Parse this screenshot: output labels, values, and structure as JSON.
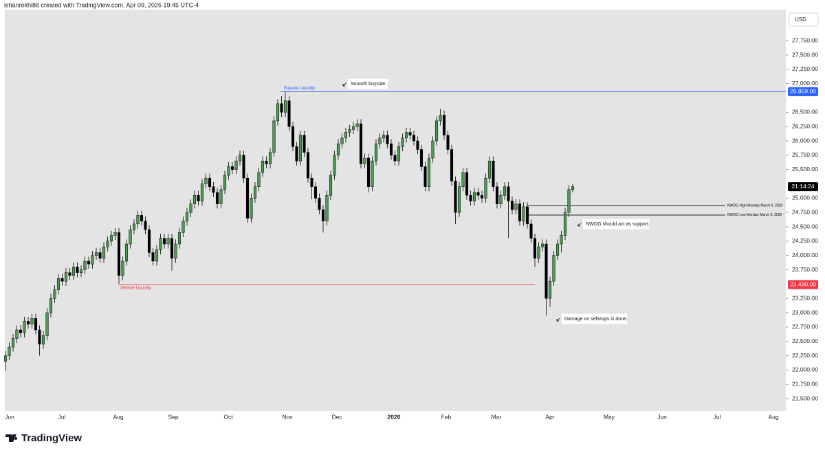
{
  "header": {
    "text": "ishanrekhi86 created with TradingView.com, Apr 09, 2026 19:45 UTC-4"
  },
  "chart_data": {
    "type": "candlestick",
    "currency": "USD",
    "x_labels": [
      "Jun",
      "Jul",
      "Aug",
      "Sep",
      "Oct",
      "Nov",
      "Dec",
      "2026",
      "Feb",
      "Mar",
      "Apr",
      "May",
      "Jun",
      "Jul",
      "Aug"
    ],
    "up_color": "#4c9a4f",
    "down_color": "#000000",
    "open": [
      22150,
      22250,
      22400,
      22550,
      22700,
      22650,
      22850,
      22800,
      22900,
      22700,
      22450,
      22600,
      23000,
      23250,
      23400,
      23600,
      23550,
      23700,
      23650,
      23800,
      23700,
      23750,
      23900,
      23850,
      24000,
      24050,
      23950,
      24150,
      24250,
      24350,
      24400,
      23650,
      23900,
      24200,
      24450,
      24550,
      24700,
      24600,
      24450,
      24050,
      23900,
      24100,
      24300,
      24200,
      24300,
      23950,
      24200,
      24400,
      24600,
      24750,
      24900,
      25050,
      24950,
      25250,
      25350,
      25200,
      25100,
      24900,
      25150,
      25400,
      25550,
      25500,
      25650,
      25750,
      25350,
      24650,
      25000,
      25200,
      25450,
      25650,
      25600,
      25800,
      26350,
      26650,
      26500,
      26700,
      26250,
      25900,
      25650,
      26100,
      25800,
      25350,
      25200,
      25000,
      24800,
      24600,
      25050,
      25400,
      25750,
      25950,
      26050,
      26150,
      26200,
      26250,
      26300,
      25600,
      25700,
      25200,
      25650,
      25950,
      26050,
      26100,
      25950,
      25750,
      25650,
      25900,
      26050,
      26150,
      26100,
      26000,
      25850,
      25550,
      25200,
      25700,
      26000,
      26350,
      26450,
      26100,
      25850,
      25300,
      24750,
      25200,
      25450,
      25050,
      24950,
      25100,
      25050,
      25000,
      25350,
      25650,
      25200,
      24900,
      25050,
      25200,
      24950,
      24800,
      24900,
      24600,
      24850,
      24550,
      24300,
      23950,
      24150,
      24200,
      23250,
      23550,
      24000,
      24200,
      24350,
      24750,
      25150
    ],
    "high": [
      22330,
      22480,
      22630,
      22780,
      22780,
      22930,
      22930,
      22980,
      22980,
      22780,
      22680,
      23080,
      23330,
      23480,
      23680,
      23680,
      23780,
      23780,
      23880,
      23880,
      23830,
      23980,
      23980,
      24080,
      24130,
      24130,
      24230,
      24330,
      24430,
      24480,
      24480,
      23980,
      24280,
      24530,
      24630,
      24780,
      24780,
      24680,
      24530,
      24130,
      24180,
      24380,
      24380,
      24380,
      24380,
      24280,
      24480,
      24680,
      24830,
      24980,
      25130,
      25130,
      25330,
      25430,
      25430,
      25280,
      25180,
      25230,
      25480,
      25630,
      25630,
      25730,
      25830,
      25830,
      25430,
      25080,
      25280,
      25530,
      25730,
      25730,
      25880,
      26430,
      26730,
      26780,
      26859,
      26780,
      26330,
      25980,
      26180,
      26180,
      25880,
      25430,
      25280,
      25080,
      24880,
      25130,
      25480,
      25830,
      26030,
      26130,
      26230,
      26280,
      26330,
      26380,
      26380,
      25780,
      25780,
      25730,
      26030,
      26130,
      26180,
      26180,
      26030,
      25830,
      25980,
      26130,
      26230,
      26230,
      26180,
      26080,
      25930,
      25630,
      25780,
      26080,
      26430,
      26560,
      26530,
      26180,
      25930,
      25380,
      25280,
      25530,
      25530,
      25130,
      25180,
      25180,
      25130,
      25430,
      25730,
      25730,
      25280,
      25130,
      25280,
      25280,
      25030,
      24980,
      24980,
      24930,
      24930,
      24630,
      24380,
      24230,
      24280,
      24280,
      23630,
      24080,
      24280,
      24430,
      24830,
      25230,
      25250
    ],
    "low": [
      21980,
      22170,
      22320,
      22470,
      22570,
      22570,
      22720,
      22720,
      22620,
      22250,
      22370,
      22520,
      22920,
      23170,
      23320,
      23470,
      23470,
      23570,
      23570,
      23620,
      23620,
      23670,
      23770,
      23770,
      23920,
      23870,
      23870,
      24070,
      24170,
      24270,
      23500,
      23570,
      23820,
      24120,
      24370,
      24470,
      24520,
      24370,
      23970,
      23820,
      23820,
      24020,
      24120,
      24120,
      23730,
      23870,
      24120,
      24320,
      24520,
      24670,
      24820,
      24870,
      24870,
      25170,
      25120,
      25020,
      24820,
      24820,
      25070,
      25320,
      25420,
      25420,
      25570,
      25270,
      24570,
      24570,
      24920,
      25120,
      25370,
      25520,
      25520,
      25720,
      26270,
      26420,
      26420,
      26170,
      25820,
      25570,
      25570,
      25720,
      25270,
      24980,
      24920,
      24720,
      24400,
      24520,
      24970,
      25320,
      25670,
      25870,
      25970,
      26070,
      26120,
      26170,
      25520,
      25520,
      25100,
      25120,
      25570,
      25870,
      25970,
      25870,
      25670,
      25570,
      25570,
      25820,
      25970,
      26020,
      25920,
      25770,
      25470,
      25120,
      25120,
      25620,
      25920,
      26270,
      26020,
      25770,
      25220,
      24550,
      24670,
      25120,
      24970,
      24870,
      24870,
      24970,
      24920,
      24920,
      25270,
      25120,
      24820,
      24820,
      24970,
      24300,
      24720,
      24720,
      24520,
      24520,
      24470,
      24220,
      23800,
      23870,
      24070,
      22950,
      23100,
      23470,
      23920,
      24050,
      24270,
      24670,
      25100
    ],
    "close": [
      22250,
      22400,
      22550,
      22700,
      22650,
      22850,
      22800,
      22900,
      22700,
      22450,
      22600,
      23000,
      23250,
      23400,
      23600,
      23550,
      23700,
      23650,
      23800,
      23700,
      23750,
      23900,
      23850,
      24000,
      24050,
      23950,
      24150,
      24250,
      24350,
      24400,
      23650,
      23900,
      24200,
      24450,
      24550,
      24700,
      24600,
      24450,
      24050,
      23900,
      24100,
      24300,
      24200,
      24300,
      23950,
      24200,
      24400,
      24600,
      24750,
      24900,
      25050,
      24950,
      25250,
      25350,
      25200,
      25100,
      24900,
      25150,
      25400,
      25550,
      25500,
      25650,
      25750,
      25350,
      24650,
      25000,
      25200,
      25450,
      25650,
      25600,
      25800,
      26350,
      26650,
      26500,
      26700,
      26250,
      25900,
      25650,
      26100,
      25800,
      25350,
      25200,
      25000,
      24800,
      24600,
      25050,
      25400,
      25750,
      25950,
      26050,
      26150,
      26200,
      26250,
      26300,
      25600,
      25700,
      25200,
      25650,
      25950,
      26050,
      26100,
      25950,
      25750,
      25650,
      25900,
      26050,
      26150,
      26100,
      26000,
      25850,
      25550,
      25200,
      25700,
      26000,
      26350,
      26450,
      26100,
      25850,
      25300,
      24750,
      25200,
      25450,
      25050,
      24950,
      25100,
      25050,
      25000,
      25350,
      25650,
      25200,
      24900,
      25050,
      25200,
      24950,
      24800,
      24900,
      24600,
      24850,
      24550,
      24300,
      23950,
      24150,
      24200,
      23250,
      23550,
      24000,
      24200,
      24350,
      24750,
      25150,
      25200
    ],
    "ylim": [
      21284,
      28292
    ],
    "yticks": [
      {
        "value": 21500,
        "label": "21,500.00"
      },
      {
        "value": 21750,
        "label": "21,750.00"
      },
      {
        "value": 22000,
        "label": "22,000.00"
      },
      {
        "value": 22250,
        "label": "22,250.00"
      },
      {
        "value": 22500,
        "label": "22,500.00"
      },
      {
        "value": 22750,
        "label": "22,750.00"
      },
      {
        "value": 23000,
        "label": "23,000.00"
      },
      {
        "value": 23250,
        "label": "23,250.00"
      },
      {
        "value": 23750,
        "label": "23,750.00"
      },
      {
        "value": 24000,
        "label": "24,000.00"
      },
      {
        "value": 24250,
        "label": "24,250.00"
      },
      {
        "value": 24500,
        "label": "24,500.00"
      },
      {
        "value": 24750,
        "label": "24,750.00"
      },
      {
        "value": 25000,
        "label": "25,000.00"
      },
      {
        "value": 25500,
        "label": "25,500.00"
      },
      {
        "value": 25750,
        "label": "25,750.00"
      },
      {
        "value": 26000,
        "label": "26,000.00"
      },
      {
        "value": 26250,
        "label": "26,250.00"
      },
      {
        "value": 26500,
        "label": "26,500.00"
      },
      {
        "value": 27000,
        "label": "27,000.00"
      },
      {
        "value": 27250,
        "label": "27,250.00"
      },
      {
        "value": 27500,
        "label": "27,500.00"
      },
      {
        "value": 27750,
        "label": "27,750.00"
      }
    ],
    "levels": [
      {
        "name": "Buyside Liquidity",
        "value": 26859,
        "value_label": "26,859.00",
        "color": "#2962ff"
      },
      {
        "name": "Sellside Liquidity",
        "value": 23490,
        "value_label": "23,490.00",
        "color": "#f23645"
      },
      {
        "name": "NWOG High Monday March 9, 2026 -",
        "value": 24870,
        "color": "#000000"
      },
      {
        "name": "NWOG Low Monday March 9, 2026 -",
        "value": 24705,
        "color": "#000000"
      }
    ],
    "annotations": [
      "Smooth buyside.",
      "NWOG should act as support.",
      "Damage on sellstops is done."
    ],
    "countdown": "21:14:24"
  },
  "footer": {
    "logo": "TradingView"
  }
}
